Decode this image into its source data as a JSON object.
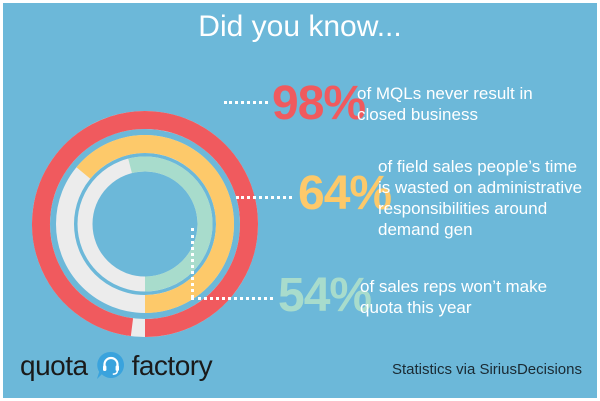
{
  "title": "Did you know...",
  "chart_data": {
    "type": "radial_bar",
    "series": [
      {
        "value": 98,
        "unit": "%",
        "color": "#f05a5e",
        "text": "of MQLs never result in closed business"
      },
      {
        "value": 64,
        "unit": "%",
        "color": "#fdc96a",
        "text": "of field sales people’s time is wasted on administrative responsibilities around demand gen"
      },
      {
        "value": 54,
        "unit": "%",
        "color": "#a8dccc",
        "text": "of sales reps won’t make quota this year"
      }
    ],
    "track_color": "#ececec"
  },
  "logo": {
    "word1": "quota",
    "word2": "factory",
    "icon": "headset-speech-bubble-icon"
  },
  "credit": "Statistics via SiriusDecisions",
  "colors": {
    "background": "#6cb8d9",
    "logo_accent": "#3aa3dd"
  }
}
